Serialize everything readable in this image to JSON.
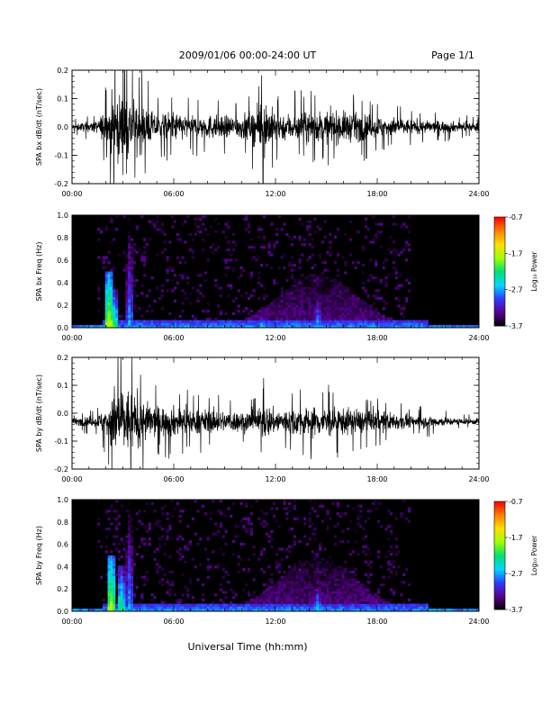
{
  "header": {
    "title": "2009/01/06  00:00-24:00 UT",
    "page_label": "Page 1/1"
  },
  "footer": {
    "xlabel": "Universal Time (hh:mm)"
  },
  "colorbar": {
    "title": "Log₁₀ Power",
    "ticks": [
      "-0.7",
      "-1.7",
      "-2.7",
      "-3.7"
    ],
    "range": [
      -3.7,
      -0.7
    ],
    "colors": [
      "#000000",
      "#5a0090",
      "#2f3cff",
      "#00d8ff",
      "#00e070",
      "#a0ff00",
      "#ffe000",
      "#ff8000",
      "#ff0000"
    ]
  },
  "chart_data": [
    {
      "type": "line",
      "ylabel": "SPA bx dB/dt (nT/sec)",
      "ylim": [
        -0.2,
        0.2
      ],
      "yticks": [
        "0.2",
        "0.1",
        "0.0",
        "-0.1",
        "-0.2"
      ],
      "xlim": [
        "00:00",
        "24:00"
      ],
      "xticks": [
        "00:00",
        "06:00",
        "12:00",
        "18:00",
        "24:00"
      ],
      "baseline": 0.0,
      "envelope": {
        "hours": [
          0,
          1.5,
          2.0,
          2.4,
          2.8,
          3.2,
          3.6,
          4.2,
          5.0,
          6.0,
          7.0,
          8.0,
          9.0,
          10.0,
          11.0,
          11.3,
          12.0,
          13.0,
          14.0,
          15.0,
          16.0,
          17.0,
          18.0,
          19.0,
          20.0,
          21.0,
          22.0,
          23.0,
          24.0
        ],
        "amplitude": [
          0.02,
          0.04,
          0.12,
          0.22,
          0.22,
          0.22,
          0.18,
          0.14,
          0.08,
          0.1,
          0.07,
          0.08,
          0.07,
          0.08,
          0.12,
          0.2,
          0.09,
          0.09,
          0.1,
          0.1,
          0.1,
          0.09,
          0.07,
          0.06,
          0.05,
          0.04,
          0.04,
          0.03,
          0.03
        ]
      }
    },
    {
      "type": "heatmap",
      "ylabel": "SPA bx Freq (Hz)",
      "ylim": [
        0.0,
        1.0
      ],
      "yticks": [
        "1.0",
        "0.8",
        "0.6",
        "0.4",
        "0.2",
        "0.0"
      ],
      "xlim": [
        "00:00",
        "24:00"
      ],
      "xticks": [
        "00:00",
        "06:00",
        "12:00",
        "18:00",
        "24:00"
      ],
      "value_units": "log10 power",
      "features": [
        {
          "hour": 2.2,
          "max_freq": 0.5,
          "level": -1.6
        },
        {
          "hour": 2.5,
          "max_freq": 0.35,
          "level": -2.0
        },
        {
          "hour": 3.4,
          "max_freq": 1.0,
          "level": -2.6
        },
        {
          "hour": 8.1,
          "max_freq": 0.12,
          "level": -2.5
        },
        {
          "hour": 11.2,
          "max_freq": 0.1,
          "level": -2.3
        },
        {
          "hour": 14.5,
          "max_freq": 0.4,
          "level": -2.6
        }
      ]
    },
    {
      "type": "line",
      "ylabel": "SPA by dB/dt (nT/sec)",
      "ylim": [
        -0.2,
        0.2
      ],
      "yticks": [
        "0.2",
        "0.1",
        "0.0",
        "-0.1",
        "-0.2"
      ],
      "xlim": [
        "00:00",
        "24:00"
      ],
      "xticks": [
        "00:00",
        "06:00",
        "12:00",
        "18:00",
        "24:00"
      ],
      "baseline": -0.03,
      "envelope": {
        "hours": [
          0,
          1.5,
          2.0,
          2.4,
          2.8,
          3.2,
          3.6,
          4.2,
          5.0,
          6.0,
          7.0,
          8.0,
          9.0,
          10.0,
          11.0,
          11.3,
          12.0,
          13.0,
          14.0,
          15.0,
          16.0,
          17.0,
          18.0,
          19.0,
          20.0,
          21.0,
          22.0,
          23.0,
          24.0
        ],
        "amplitude": [
          0.02,
          0.04,
          0.1,
          0.22,
          0.22,
          0.22,
          0.2,
          0.14,
          0.1,
          0.1,
          0.08,
          0.08,
          0.07,
          0.07,
          0.08,
          0.12,
          0.08,
          0.09,
          0.1,
          0.1,
          0.09,
          0.08,
          0.07,
          0.06,
          0.04,
          0.04,
          0.03,
          0.02,
          0.02
        ]
      }
    },
    {
      "type": "heatmap",
      "ylabel": "SPA by Freq (Hz)",
      "ylim": [
        0.0,
        1.0
      ],
      "yticks": [
        "1.0",
        "0.8",
        "0.6",
        "0.4",
        "0.2",
        "0.0"
      ],
      "xlim": [
        "00:00",
        "24:00"
      ],
      "xticks": [
        "00:00",
        "06:00",
        "12:00",
        "18:00",
        "24:00"
      ],
      "value_units": "log10 power",
      "features": [
        {
          "hour": 2.3,
          "max_freq": 0.5,
          "level": -1.6
        },
        {
          "hour": 2.9,
          "max_freq": 0.4,
          "level": -2.0
        },
        {
          "hour": 3.4,
          "max_freq": 1.0,
          "level": -2.6
        },
        {
          "hour": 6.3,
          "max_freq": 0.15,
          "level": -2.6
        },
        {
          "hour": 11.0,
          "max_freq": 0.08,
          "level": -2.3
        },
        {
          "hour": 14.5,
          "max_freq": 0.3,
          "level": -2.5
        }
      ]
    }
  ]
}
